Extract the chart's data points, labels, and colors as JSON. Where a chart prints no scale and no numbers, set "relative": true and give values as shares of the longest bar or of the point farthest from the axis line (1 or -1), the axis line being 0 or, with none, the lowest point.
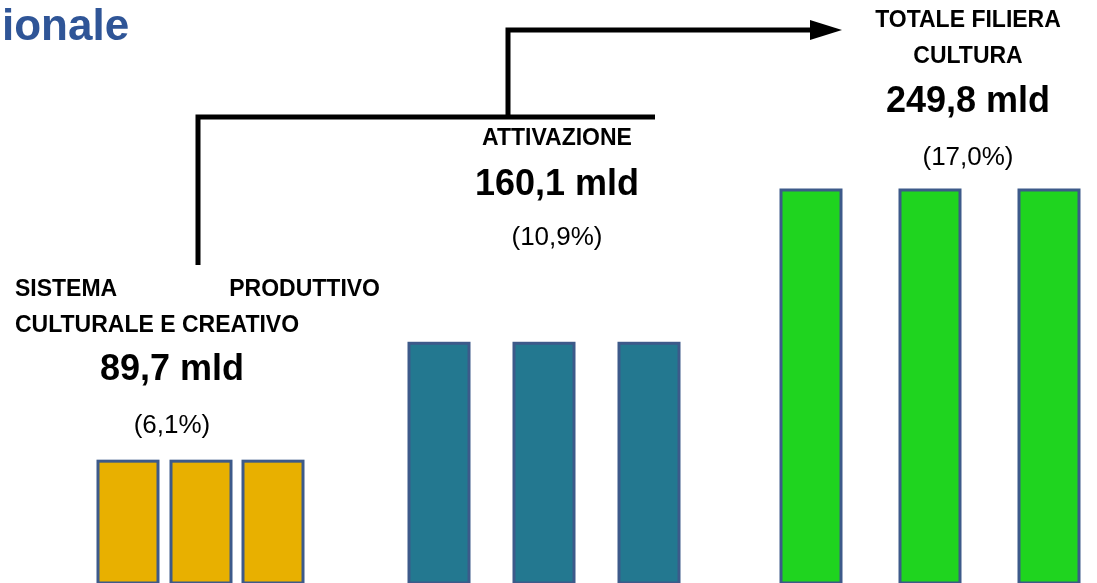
{
  "chart_data": {
    "type": "bar",
    "title": "ionale",
    "relative": true,
    "categories": [
      null,
      null,
      null,
      null,
      null,
      null,
      null,
      null,
      null
    ],
    "values": [
      0.31,
      0.31,
      0.31,
      0.61,
      0.61,
      0.61,
      1,
      1,
      1
    ],
    "colors": [
      "#e8b000",
      "#e8b000",
      "#e8b000",
      "#237890",
      "#237890",
      "#237890",
      "#1fd41f",
      "#1fd41f",
      "#1fd41f"
    ],
    "annotations": [
      "SISTEMA PRODUTTIVO CULTURALE E CREATIVO",
      "89,7 mld",
      "(6,1%)",
      "ATTIVAZIONE",
      "160,1 mld",
      "(10,9%)",
      "TOTALE FILIERA CULTURA",
      "249,8 mld",
      "(17,0%)"
    ]
  }
}
